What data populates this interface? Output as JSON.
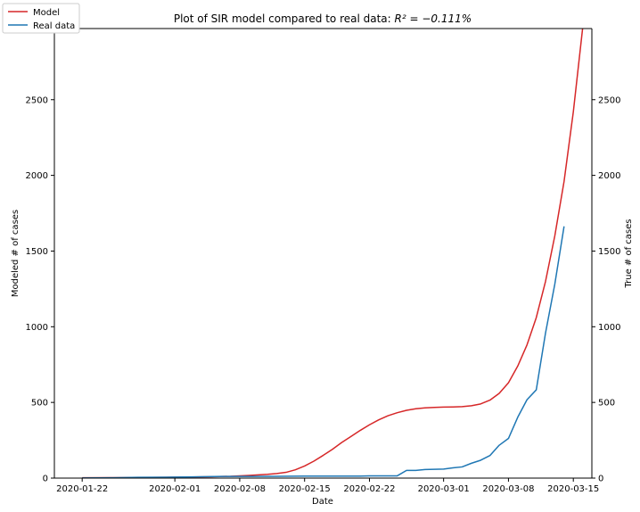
{
  "chart_data": {
    "type": "line",
    "title": "Plot of SIR model compared to real data: ",
    "title_math": "R² = −0.111%",
    "xlabel": "Date",
    "ylabel_left": "Modeled # of cases",
    "ylabel_right": "True # of cases",
    "x_ticks": [
      "2020-01-22",
      "2020-02-01",
      "2020-02-08",
      "2020-02-15",
      "2020-02-22",
      "2020-03-01",
      "2020-03-08",
      "2020-03-15"
    ],
    "y_ticks": [
      0,
      500,
      1000,
      1500,
      2000,
      2500
    ],
    "y_tick_labels": [
      "0",
      "500",
      "1000",
      "1500",
      "2000",
      "2500"
    ],
    "xlim": [
      "2020-01-19",
      "2020-03-17"
    ],
    "ylim": [
      0,
      2970
    ],
    "grid": false,
    "legend_position": "upper-left",
    "series": [
      {
        "name": "Model",
        "color": "#d62728",
        "axis": "left",
        "points": [
          [
            "2020-01-22",
            2
          ],
          [
            "2020-01-25",
            3
          ],
          [
            "2020-01-28",
            4
          ],
          [
            "2020-01-31",
            5
          ],
          [
            "2020-02-03",
            7
          ],
          [
            "2020-02-05",
            9
          ],
          [
            "2020-02-07",
            12
          ],
          [
            "2020-02-09",
            18
          ],
          [
            "2020-02-11",
            25
          ],
          [
            "2020-02-12",
            30
          ],
          [
            "2020-02-13",
            38
          ],
          [
            "2020-02-14",
            55
          ],
          [
            "2020-02-15",
            80
          ],
          [
            "2020-02-16",
            112
          ],
          [
            "2020-02-17",
            150
          ],
          [
            "2020-02-18",
            190
          ],
          [
            "2020-02-19",
            235
          ],
          [
            "2020-02-20",
            275
          ],
          [
            "2020-02-21",
            315
          ],
          [
            "2020-02-22",
            352
          ],
          [
            "2020-02-23",
            385
          ],
          [
            "2020-02-24",
            412
          ],
          [
            "2020-02-25",
            432
          ],
          [
            "2020-02-26",
            448
          ],
          [
            "2020-02-27",
            458
          ],
          [
            "2020-02-28",
            464
          ],
          [
            "2020-02-29",
            467
          ],
          [
            "2020-03-01",
            469
          ],
          [
            "2020-03-02",
            470
          ],
          [
            "2020-03-03",
            472
          ],
          [
            "2020-03-04",
            478
          ],
          [
            "2020-03-05",
            490
          ],
          [
            "2020-03-06",
            515
          ],
          [
            "2020-03-07",
            560
          ],
          [
            "2020-03-08",
            630
          ],
          [
            "2020-03-09",
            740
          ],
          [
            "2020-03-10",
            880
          ],
          [
            "2020-03-11",
            1060
          ],
          [
            "2020-03-12",
            1300
          ],
          [
            "2020-03-13",
            1600
          ],
          [
            "2020-03-14",
            1960
          ],
          [
            "2020-03-15",
            2420
          ],
          [
            "2020-03-16",
            2970
          ]
        ]
      },
      {
        "name": "Real data",
        "color": "#1f77b4",
        "axis": "right",
        "points": [
          [
            "2020-01-22",
            1
          ],
          [
            "2020-01-25",
            2
          ],
          [
            "2020-01-28",
            5
          ],
          [
            "2020-01-31",
            6
          ],
          [
            "2020-02-03",
            8
          ],
          [
            "2020-02-06",
            11
          ],
          [
            "2020-02-09",
            11
          ],
          [
            "2020-02-12",
            12
          ],
          [
            "2020-02-15",
            13
          ],
          [
            "2020-02-18",
            13
          ],
          [
            "2020-02-21",
            13
          ],
          [
            "2020-02-22",
            15
          ],
          [
            "2020-02-24",
            15
          ],
          [
            "2020-02-25",
            15
          ],
          [
            "2020-02-26",
            51
          ],
          [
            "2020-02-27",
            51
          ],
          [
            "2020-02-28",
            57
          ],
          [
            "2020-02-29",
            58
          ],
          [
            "2020-03-01",
            60
          ],
          [
            "2020-03-02",
            68
          ],
          [
            "2020-03-03",
            74
          ],
          [
            "2020-03-04",
            98
          ],
          [
            "2020-03-05",
            118
          ],
          [
            "2020-03-06",
            149
          ],
          [
            "2020-03-07",
            217
          ],
          [
            "2020-03-08",
            262
          ],
          [
            "2020-03-09",
            402
          ],
          [
            "2020-03-10",
            518
          ],
          [
            "2020-03-11",
            583
          ],
          [
            "2020-03-12",
            959
          ],
          [
            "2020-03-13",
            1281
          ],
          [
            "2020-03-14",
            1663
          ]
        ]
      }
    ]
  }
}
